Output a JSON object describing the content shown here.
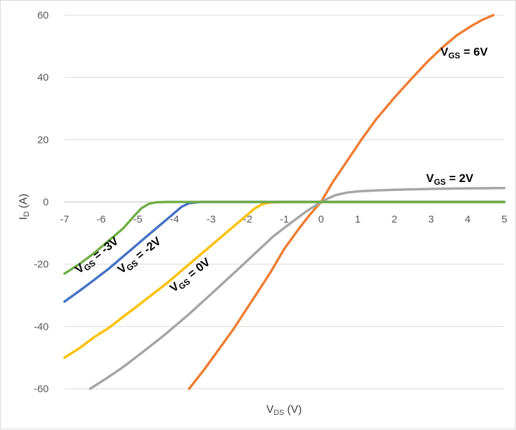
{
  "chart_data": {
    "type": "line",
    "xlabel": {
      "main": "V",
      "sub": "DS",
      "rest": " (V)"
    },
    "ylabel": {
      "main": "I",
      "sub": "D",
      "rest": " (A)"
    },
    "xlim": [
      -7,
      5
    ],
    "ylim": [
      -60,
      60
    ],
    "x_ticks": [
      -7,
      -6,
      -5,
      -4,
      -3,
      -2,
      -1,
      0,
      1,
      2,
      3,
      4,
      5
    ],
    "y_ticks": [
      -60,
      -40,
      -20,
      0,
      20,
      40,
      60
    ],
    "grid": {
      "horizontal": true,
      "vertical": false
    },
    "series": [
      {
        "name": "VGS = 6V",
        "color": "#ed7d31",
        "points": [
          [
            -3.6,
            -60
          ],
          [
            -3.2,
            -54
          ],
          [
            -2.8,
            -47.5
          ],
          [
            -2.4,
            -41
          ],
          [
            -1.9,
            -32
          ],
          [
            -1.4,
            -23
          ],
          [
            -1.0,
            -15
          ],
          [
            -0.6,
            -8.5
          ],
          [
            -0.3,
            -4
          ],
          [
            0,
            0
          ],
          [
            0.3,
            6
          ],
          [
            0.7,
            13
          ],
          [
            1.1,
            20
          ],
          [
            1.5,
            26.5
          ],
          [
            2.0,
            33.5
          ],
          [
            2.5,
            40
          ],
          [
            2.9,
            45
          ],
          [
            3.3,
            49.5
          ],
          [
            3.7,
            53.5
          ],
          [
            4.1,
            56.5
          ],
          [
            4.4,
            58.5
          ],
          [
            4.7,
            60
          ]
        ]
      },
      {
        "name": "VGS = 2V",
        "color": "#a5a5a5",
        "points": [
          [
            -6.3,
            -60
          ],
          [
            -5.9,
            -57
          ],
          [
            -5.4,
            -53
          ],
          [
            -4.9,
            -48.5
          ],
          [
            -4.3,
            -43
          ],
          [
            -3.6,
            -36
          ],
          [
            -2.9,
            -28.5
          ],
          [
            -2.3,
            -22
          ],
          [
            -1.8,
            -16.5
          ],
          [
            -1.3,
            -11
          ],
          [
            -0.8,
            -6.5
          ],
          [
            -0.4,
            -3
          ],
          [
            0,
            0
          ],
          [
            0.2,
            1.2
          ],
          [
            0.4,
            2.2
          ],
          [
            0.7,
            3.0
          ],
          [
            1.0,
            3.4
          ],
          [
            1.5,
            3.7
          ],
          [
            2.0,
            3.9
          ],
          [
            3.0,
            4.2
          ],
          [
            4.0,
            4.35
          ],
          [
            5.0,
            4.45
          ]
        ]
      },
      {
        "name": "VGS = 0V",
        "color": "#ffc000",
        "points": [
          [
            -7,
            -50
          ],
          [
            -6.6,
            -47
          ],
          [
            -6.2,
            -43.5
          ],
          [
            -5.8,
            -40.5
          ],
          [
            -5.3,
            -36
          ],
          [
            -4.8,
            -31.5
          ],
          [
            -4.2,
            -26
          ],
          [
            -3.6,
            -20
          ],
          [
            -3.0,
            -14
          ],
          [
            -2.5,
            -9
          ],
          [
            -2.1,
            -5
          ],
          [
            -1.8,
            -2
          ],
          [
            -1.6,
            -0.7
          ],
          [
            -1.4,
            -0.2
          ],
          [
            -1.0,
            0
          ],
          [
            5,
            0
          ]
        ]
      },
      {
        "name": "VGS = -2V",
        "color": "#4472c4",
        "points": [
          [
            -7,
            -32
          ],
          [
            -6.7,
            -29.5
          ],
          [
            -6.3,
            -26
          ],
          [
            -5.8,
            -21.5
          ],
          [
            -5.3,
            -16.5
          ],
          [
            -4.8,
            -11.5
          ],
          [
            -4.4,
            -7.5
          ],
          [
            -4.0,
            -3.5
          ],
          [
            -3.8,
            -1.5
          ],
          [
            -3.6,
            -0.4
          ],
          [
            -3.3,
            0
          ],
          [
            5,
            0
          ]
        ]
      },
      {
        "name": "VGS = -3V",
        "color": "#70ad47",
        "points": [
          [
            -7,
            -23
          ],
          [
            -6.6,
            -20
          ],
          [
            -6.2,
            -16.5
          ],
          [
            -5.8,
            -12.5
          ],
          [
            -5.4,
            -8.5
          ],
          [
            -5.1,
            -4.5
          ],
          [
            -4.9,
            -2
          ],
          [
            -4.7,
            -0.6
          ],
          [
            -4.5,
            -0.1
          ],
          [
            -4.2,
            0
          ],
          [
            5,
            0
          ]
        ]
      }
    ],
    "annotations": [
      {
        "main": "V",
        "sub": "GS",
        "rest": " = 6V"
      },
      {
        "main": "V",
        "sub": "GS",
        "rest": " = 2V"
      },
      {
        "main": "V",
        "sub": "GS",
        "rest": " = 0V"
      },
      {
        "main": "V",
        "sub": "GS",
        "rest": " = -2V"
      },
      {
        "main": "V",
        "sub": "GS",
        "rest": " = -3V"
      }
    ]
  }
}
